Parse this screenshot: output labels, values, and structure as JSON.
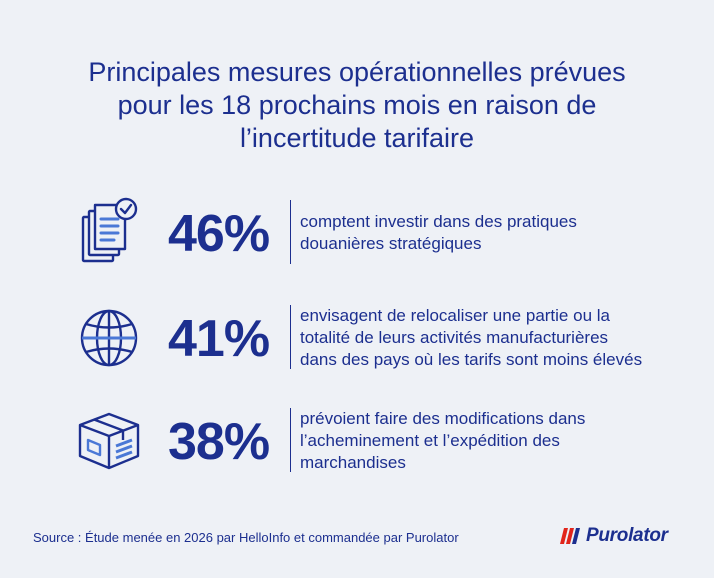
{
  "title": {
    "line1": "Principales mesures opérationnelles prévues",
    "line2": "pour les 18 prochains mois en raison de",
    "line3": "l’incertitude tarifaire"
  },
  "stats": [
    {
      "percent": "46%",
      "icon": "documents-check-icon",
      "lines": [
        "comptent investir dans des pratiques",
        "douanières stratégiques"
      ]
    },
    {
      "percent": "41%",
      "icon": "globe-icon",
      "lines": [
        "envisagent de relocaliser une partie ou la",
        "totalité de leurs activités manufacturières",
        "dans des pays où les tarifs sont moins élevés"
      ]
    },
    {
      "percent": "38%",
      "icon": "shipping-box-icon",
      "lines": [
        "prévoient faire des modifications dans",
        "l’acheminement et l’expédition des",
        "marchandises"
      ]
    }
  ],
  "source": "Source : Étude menée en 2026 par HelloInfo et commandée par Purolator",
  "logo": {
    "text": "Purolator"
  },
  "colors": {
    "background": "#eef1f6",
    "primary": "#1c2f8f",
    "accent": "#e1251b"
  }
}
